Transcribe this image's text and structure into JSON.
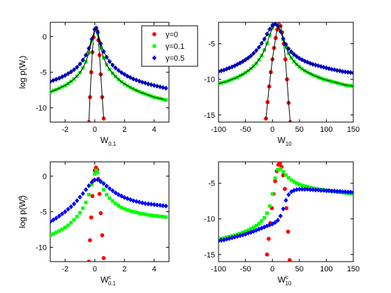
{
  "legend": {
    "placement": "top-center",
    "entries": [
      {
        "label": "γ=0",
        "color": "#ff0000",
        "marker": "circle"
      },
      {
        "label": "γ=0.1",
        "color": "#00ff00",
        "marker": "square"
      },
      {
        "label": "γ=0.5",
        "color": "#0000ff",
        "marker": "diamond"
      }
    ]
  },
  "chart_data": [
    {
      "type": "scatter",
      "xlabel": "W",
      "xlabel_sub": "0.1",
      "xlabel_sup": "",
      "ylabel": "log p(W",
      "ylabel_sub": "t",
      "ylabel_sup": "",
      "xlim": [
        -3,
        5
      ],
      "ylim": [
        -12,
        2
      ],
      "xticks": [
        -2,
        0,
        2,
        4
      ],
      "yticks": [
        -10,
        -5,
        0
      ],
      "grid": false,
      "series": [
        {
          "color": "#ff0000",
          "marker": "circle",
          "x": [
            -0.4,
            -0.32,
            -0.24,
            -0.16,
            -0.08,
            0.0,
            0.08,
            0.16,
            0.24,
            0.32,
            0.4,
            0.5,
            0.6
          ],
          "y": [
            -12,
            -8.5,
            -5.0,
            -2.2,
            -0.1,
            1.0,
            1.2,
            0.8,
            -0.5,
            -2.6,
            -5.3,
            -8.5,
            -11.5
          ]
        },
        {
          "color": "#00ff00",
          "marker": "square",
          "x": [
            -3,
            -2.8,
            -2.6,
            -2.4,
            -2.2,
            -2,
            -1.8,
            -1.6,
            -1.4,
            -1.2,
            -1,
            -0.8,
            -0.6,
            -0.4,
            -0.2,
            0,
            0.1,
            0.2,
            0.4,
            0.6,
            0.8,
            1,
            1.2,
            1.4,
            1.6,
            1.8,
            2,
            2.2,
            2.4,
            2.6,
            2.8,
            3,
            3.2,
            3.4,
            3.6,
            3.8,
            4,
            4.2,
            4.4,
            4.6,
            4.8
          ],
          "y": [
            -7.8,
            -7.6,
            -7.45,
            -7.25,
            -7.05,
            -6.85,
            -6.6,
            -6.3,
            -5.95,
            -5.55,
            -5.05,
            -4.4,
            -3.55,
            -2.3,
            -0.6,
            1.0,
            1.2,
            0.5,
            -1.6,
            -3.0,
            -3.95,
            -4.6,
            -5.15,
            -5.6,
            -6.0,
            -6.35,
            -6.65,
            -6.9,
            -7.15,
            -7.35,
            -7.55,
            -7.75,
            -7.9,
            -8.05,
            -8.2,
            -8.35,
            -8.5,
            -8.6,
            -8.7,
            -8.8,
            -8.9
          ]
        },
        {
          "color": "#0000ff",
          "marker": "diamond",
          "x": [
            -3,
            -2.8,
            -2.6,
            -2.4,
            -2.2,
            -2,
            -1.8,
            -1.6,
            -1.4,
            -1.2,
            -1,
            -0.8,
            -0.6,
            -0.4,
            -0.2,
            0,
            0.1,
            0.2,
            0.4,
            0.6,
            0.8,
            1,
            1.2,
            1.4,
            1.6,
            1.8,
            2,
            2.2,
            2.4,
            2.6,
            2.8,
            3,
            3.2,
            3.4,
            3.6,
            3.8,
            4,
            4.2,
            4.4,
            4.6,
            4.8
          ],
          "y": [
            -6.3,
            -6.15,
            -6.0,
            -5.85,
            -5.65,
            -5.45,
            -5.2,
            -4.95,
            -4.65,
            -4.3,
            -3.85,
            -3.3,
            -2.6,
            -1.65,
            -0.35,
            1.0,
            1.2,
            0.6,
            -1.0,
            -2.1,
            -2.9,
            -3.5,
            -4.0,
            -4.4,
            -4.75,
            -5.05,
            -5.3,
            -5.55,
            -5.75,
            -5.95,
            -6.1,
            -6.25,
            -6.4,
            -6.5,
            -6.65,
            -6.75,
            -6.85,
            -6.95,
            -7.05,
            -7.15,
            -7.25
          ]
        }
      ],
      "fit_curves": true
    },
    {
      "type": "scatter",
      "xlabel": "W",
      "xlabel_sub": "10",
      "xlabel_sup": "",
      "ylabel": "",
      "ylabel_sub": "",
      "ylabel_sup": "",
      "xlim": [
        -100,
        150
      ],
      "ylim": [
        -16,
        -2
      ],
      "xticks": [
        -100,
        -50,
        0,
        50,
        100,
        150
      ],
      "yticks": [
        -15,
        -10,
        -5
      ],
      "grid": false,
      "series": [
        {
          "color": "#ff0000",
          "marker": "circle",
          "x": [
            -12,
            -9,
            -6,
            -3,
            0,
            3,
            6,
            9,
            12,
            15,
            18,
            21,
            24,
            27,
            30,
            33
          ],
          "y": [
            -15.5,
            -13.2,
            -11.0,
            -9.0,
            -7.2,
            -5.6,
            -4.2,
            -3.0,
            -2.3,
            -2.5,
            -3.4,
            -5.0,
            -7.2,
            -10.0,
            -13.3,
            -16.0
          ]
        },
        {
          "color": "#00ff00",
          "marker": "square",
          "x": [
            -100,
            -95,
            -90,
            -85,
            -80,
            -75,
            -70,
            -65,
            -60,
            -55,
            -50,
            -45,
            -40,
            -35,
            -30,
            -25,
            -20,
            -15,
            -10,
            -5,
            0,
            5,
            10,
            15,
            20,
            25,
            30,
            35,
            40,
            45,
            50,
            55,
            60,
            65,
            70,
            75,
            80,
            85,
            90,
            95,
            100,
            105,
            110,
            115,
            120,
            125,
            130,
            135,
            140,
            145,
            150
          ],
          "y": [
            -10.6,
            -10.5,
            -10.4,
            -10.3,
            -10.15,
            -10.0,
            -9.85,
            -9.7,
            -9.5,
            -9.3,
            -9.05,
            -8.8,
            -8.5,
            -8.15,
            -7.75,
            -7.25,
            -6.65,
            -5.9,
            -4.95,
            -3.8,
            -2.8,
            -2.3,
            -2.4,
            -3.2,
            -4.4,
            -5.5,
            -6.35,
            -7.0,
            -7.5,
            -7.9,
            -8.25,
            -8.55,
            -8.8,
            -9.0,
            -9.2,
            -9.4,
            -9.55,
            -9.7,
            -9.85,
            -10.0,
            -10.1,
            -10.2,
            -10.3,
            -10.4,
            -10.5,
            -10.6,
            -10.7,
            -10.8,
            -10.85,
            -10.9,
            -11.0
          ]
        },
        {
          "color": "#0000ff",
          "marker": "diamond",
          "x": [
            -100,
            -95,
            -90,
            -85,
            -80,
            -75,
            -70,
            -65,
            -60,
            -55,
            -50,
            -45,
            -40,
            -35,
            -30,
            -25,
            -20,
            -15,
            -10,
            -5,
            0,
            5,
            10,
            15,
            20,
            25,
            30,
            35,
            40,
            45,
            50,
            55,
            60,
            65,
            70,
            75,
            80,
            85,
            90,
            95,
            100,
            105,
            110,
            115,
            120,
            125,
            130,
            135,
            140,
            145,
            150
          ],
          "y": [
            -8.9,
            -8.8,
            -8.7,
            -8.55,
            -8.4,
            -8.25,
            -8.1,
            -7.9,
            -7.7,
            -7.5,
            -7.25,
            -7.0,
            -6.7,
            -6.35,
            -5.95,
            -5.5,
            -4.95,
            -4.35,
            -3.65,
            -2.95,
            -2.4,
            -2.2,
            -2.5,
            -3.3,
            -4.3,
            -5.1,
            -5.7,
            -6.15,
            -6.5,
            -6.8,
            -7.05,
            -7.25,
            -7.45,
            -7.6,
            -7.75,
            -7.9,
            -8.0,
            -8.1,
            -8.2,
            -8.3,
            -8.4,
            -8.5,
            -8.6,
            -8.65,
            -8.75,
            -8.8,
            -8.9,
            -8.95,
            -9.0,
            -9.05,
            -9.1
          ]
        }
      ],
      "fit_curves": true
    },
    {
      "type": "scatter",
      "xlabel": "W",
      "xlabel_sub": "0.1",
      "xlabel_sup": "c",
      "ylabel": "log p(W",
      "ylabel_sub": "t",
      "ylabel_sup": "c",
      "xlim": [
        -3,
        5
      ],
      "ylim": [
        -12,
        2
      ],
      "xticks": [
        -2,
        0,
        2,
        4
      ],
      "yticks": [
        -10,
        -5,
        0
      ],
      "grid": false,
      "series": [
        {
          "color": "#ff0000",
          "marker": "circle",
          "x": [
            -0.4,
            -0.32,
            -0.24,
            -0.16,
            -0.08,
            0.0,
            0.08,
            0.16,
            0.24,
            0.32,
            0.4,
            0.5,
            0.6
          ],
          "y": [
            -12,
            -9.0,
            -5.8,
            -2.8,
            -0.6,
            0.8,
            1.2,
            0.9,
            -0.4,
            -2.5,
            -5.2,
            -8.3,
            -11.5
          ]
        },
        {
          "color": "#00ff00",
          "marker": "square",
          "x": [
            -3,
            -2.8,
            -2.6,
            -2.4,
            -2.2,
            -2,
            -1.8,
            -1.6,
            -1.4,
            -1.2,
            -1,
            -0.8,
            -0.6,
            -0.4,
            -0.2,
            0,
            0.1,
            0.2,
            0.4,
            0.6,
            0.8,
            1,
            1.2,
            1.4,
            1.6,
            1.8,
            2,
            2.2,
            2.4,
            2.6,
            2.8,
            3,
            3.2,
            3.4,
            3.6,
            3.8,
            4,
            4.2,
            4.4,
            4.6,
            4.8
          ],
          "y": [
            -8.3,
            -8.1,
            -7.9,
            -7.7,
            -7.45,
            -7.2,
            -6.9,
            -6.55,
            -6.15,
            -5.7,
            -5.15,
            -4.5,
            -3.7,
            -2.6,
            -1.2,
            0.3,
            0.8,
            0.5,
            -0.8,
            -1.9,
            -2.6,
            -3.1,
            -3.5,
            -3.85,
            -4.15,
            -4.4,
            -4.6,
            -4.75,
            -4.9,
            -5.0,
            -5.1,
            -5.2,
            -5.3,
            -5.35,
            -5.45,
            -5.5,
            -5.55,
            -5.6,
            -5.65,
            -5.7,
            -5.75
          ]
        },
        {
          "color": "#0000ff",
          "marker": "diamond",
          "x": [
            -3,
            -2.8,
            -2.6,
            -2.4,
            -2.2,
            -2,
            -1.8,
            -1.6,
            -1.4,
            -1.2,
            -1,
            -0.8,
            -0.6,
            -0.4,
            -0.2,
            0,
            0.2,
            0.4,
            0.6,
            0.8,
            1,
            1.2,
            1.4,
            1.6,
            1.8,
            2,
            2.2,
            2.4,
            2.6,
            2.8,
            3,
            3.2,
            3.4,
            3.6,
            3.8,
            4,
            4.2,
            4.4,
            4.6,
            4.8
          ],
          "y": [
            -6.4,
            -6.15,
            -5.9,
            -5.6,
            -5.3,
            -5.0,
            -4.65,
            -4.3,
            -3.9,
            -3.45,
            -2.95,
            -2.45,
            -1.9,
            -1.35,
            -0.85,
            -0.55,
            -0.5,
            -0.75,
            -1.05,
            -1.4,
            -1.75,
            -2.05,
            -2.35,
            -2.6,
            -2.8,
            -3.0,
            -3.15,
            -3.3,
            -3.45,
            -3.55,
            -3.65,
            -3.75,
            -3.85,
            -3.9,
            -3.95,
            -4.0,
            -4.05,
            -4.1,
            -4.15,
            -4.2
          ]
        }
      ],
      "fit_curves": false
    },
    {
      "type": "scatter",
      "xlabel": "W",
      "xlabel_sub": "10",
      "xlabel_sup": "c",
      "ylabel": "",
      "ylabel_sub": "",
      "ylabel_sup": "",
      "xlim": [
        -100,
        150
      ],
      "ylim": [
        -16,
        -2
      ],
      "xticks": [
        -100,
        -50,
        0,
        50,
        100,
        150
      ],
      "yticks": [
        -15,
        -10,
        -5
      ],
      "grid": false,
      "series": [
        {
          "color": "#ff0000",
          "marker": "circle",
          "x": [
            -10,
            -7,
            -4,
            -1,
            2,
            5,
            8,
            11,
            14,
            17,
            20,
            23,
            26,
            29,
            32
          ],
          "y": [
            -15.0,
            -12.8,
            -10.6,
            -8.5,
            -6.5,
            -4.7,
            -3.3,
            -2.4,
            -2.2,
            -2.7,
            -3.9,
            -5.8,
            -8.5,
            -11.8,
            -15.8
          ]
        },
        {
          "color": "#00ff00",
          "marker": "square",
          "x": [
            -100,
            -95,
            -90,
            -85,
            -80,
            -75,
            -70,
            -65,
            -60,
            -55,
            -50,
            -45,
            -40,
            -35,
            -30,
            -25,
            -20,
            -15,
            -10,
            -5,
            0,
            5,
            10,
            15,
            20,
            25,
            30,
            35,
            40,
            45,
            50,
            55,
            60,
            65,
            70,
            75,
            80,
            85,
            90,
            95,
            100,
            105,
            110,
            115,
            120,
            125,
            130,
            135,
            140,
            145,
            150
          ],
          "y": [
            -12.9,
            -12.8,
            -12.7,
            -12.6,
            -12.5,
            -12.4,
            -12.3,
            -12.2,
            -12.05,
            -11.9,
            -11.75,
            -11.6,
            -11.4,
            -11.2,
            -10.95,
            -10.65,
            -10.3,
            -9.85,
            -9.2,
            -8.2,
            -6.5,
            -4.3,
            -3.1,
            -3.0,
            -3.4,
            -3.85,
            -4.25,
            -4.55,
            -4.8,
            -5.0,
            -5.15,
            -5.3,
            -5.4,
            -5.5,
            -5.6,
            -5.7,
            -5.75,
            -5.85,
            -5.9,
            -5.95,
            -6.0,
            -6.05,
            -6.1,
            -6.15,
            -6.2,
            -6.25,
            -6.3,
            -6.35,
            -6.4,
            -6.45,
            -6.5
          ]
        },
        {
          "color": "#0000ff",
          "marker": "diamond",
          "x": [
            -100,
            -95,
            -90,
            -85,
            -80,
            -75,
            -70,
            -65,
            -60,
            -55,
            -50,
            -45,
            -40,
            -35,
            -30,
            -25,
            -20,
            -15,
            -10,
            -5,
            0,
            5,
            10,
            15,
            20,
            25,
            30,
            35,
            40,
            45,
            50,
            55,
            60,
            65,
            70,
            75,
            80,
            85,
            90,
            95,
            100,
            105,
            110,
            115,
            120,
            125,
            130,
            135,
            140,
            145,
            150
          ],
          "y": [
            -13.1,
            -13.0,
            -12.95,
            -12.85,
            -12.75,
            -12.65,
            -12.55,
            -12.45,
            -12.35,
            -12.25,
            -12.15,
            -12.0,
            -11.9,
            -11.75,
            -11.6,
            -11.45,
            -11.3,
            -11.15,
            -11.0,
            -10.85,
            -10.7,
            -10.5,
            -10.2,
            -9.6,
            -8.6,
            -7.4,
            -6.6,
            -6.2,
            -6.0,
            -5.9,
            -5.85,
            -5.85,
            -5.85,
            -5.85,
            -5.9,
            -5.9,
            -5.95,
            -5.95,
            -6.0,
            -6.0,
            -6.05,
            -6.05,
            -6.1,
            -6.1,
            -6.15,
            -6.15,
            -6.2,
            -6.2,
            -6.25,
            -6.25,
            -6.3
          ]
        }
      ],
      "fit_curves": false
    }
  ]
}
